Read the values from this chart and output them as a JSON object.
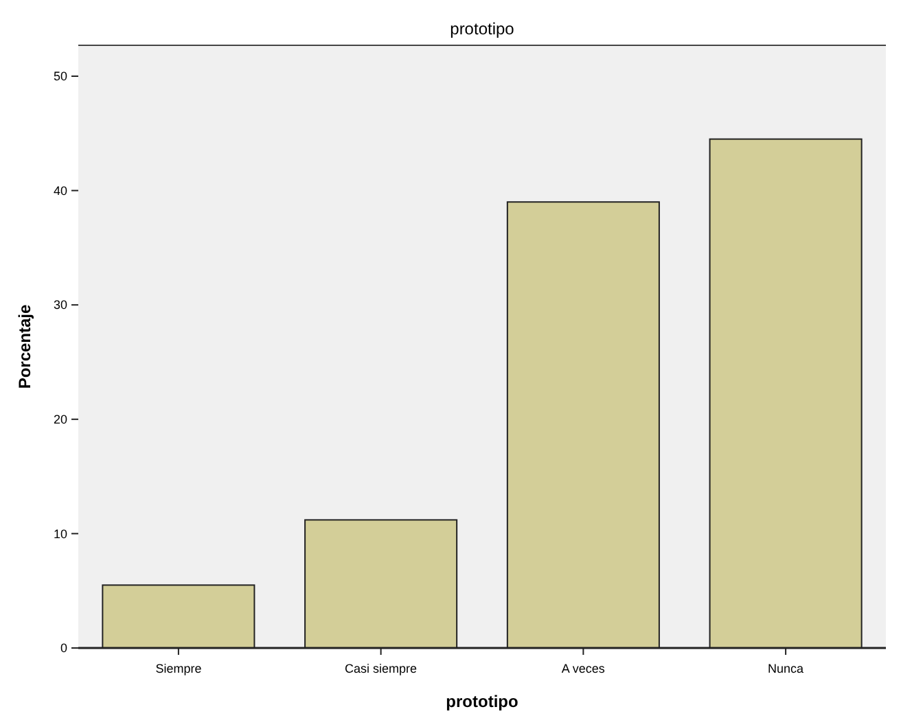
{
  "chart_data": {
    "type": "bar",
    "title": "prototipo",
    "xlabel": "prototipo",
    "ylabel": "Porcentaje",
    "categories": [
      "Siempre",
      "Casi siempre",
      "A veces",
      "Nunca"
    ],
    "values": [
      5.5,
      11.2,
      39.0,
      44.5
    ],
    "color": "#d3ce98",
    "ylim": [
      0,
      52.7
    ],
    "yticks": [
      0,
      10,
      20,
      30,
      40,
      50
    ],
    "grid": false
  }
}
